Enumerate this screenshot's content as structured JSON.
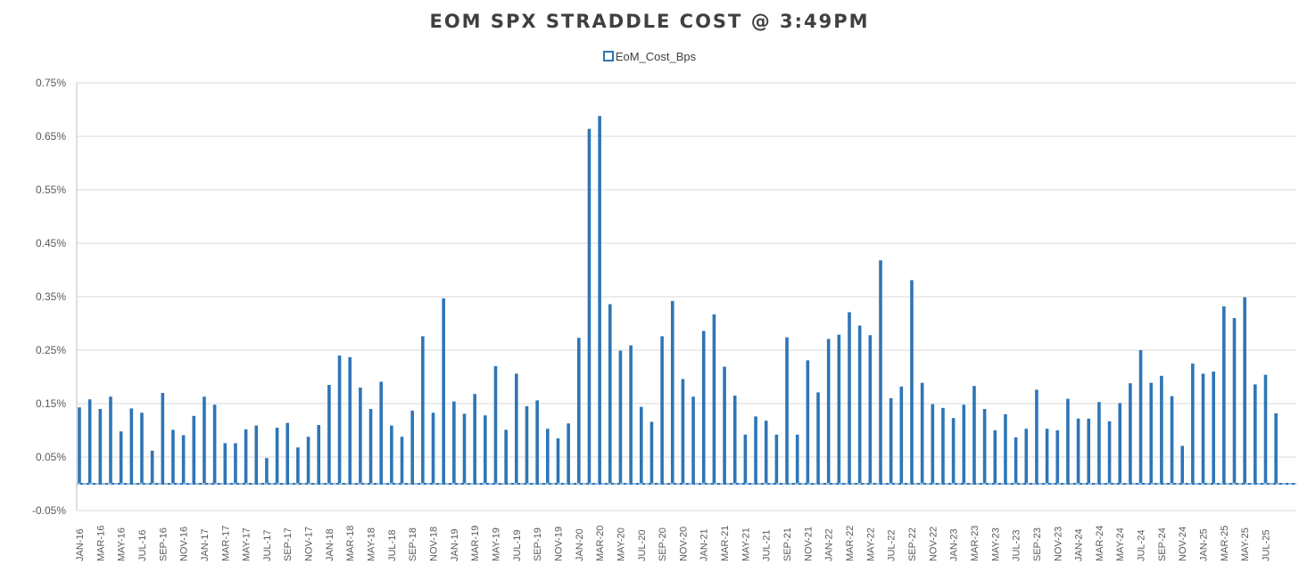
{
  "chart_data": {
    "type": "bar",
    "title": "EOM SPX STRADDLE COST @ 3:49PM",
    "legend": [
      {
        "name": "EoM_Cost_Bps",
        "color": "#2e75b6"
      }
    ],
    "legend_position": "top-center",
    "xlabel": "",
    "ylabel": "",
    "ylim": [
      -0.05,
      0.75
    ],
    "grid": true,
    "bar_color": "#2e75b6",
    "y_ticks": [
      "-0.05%",
      "0.05%",
      "0.15%",
      "0.25%",
      "0.35%",
      "0.45%",
      "0.55%",
      "0.65%",
      "0.75%"
    ],
    "y_tick_values": [
      -0.05,
      0.05,
      0.15,
      0.25,
      0.35,
      0.45,
      0.55,
      0.65,
      0.75
    ],
    "x_tick_labels": [
      "JAN-16",
      "MAR-16",
      "MAY-16",
      "JUL-16",
      "SEP-16",
      "NOV-16",
      "JAN-17",
      "MAR-17",
      "MAY-17",
      "JUL-17",
      "SEP-17",
      "NOV-17",
      "JAN-18",
      "MAR-18",
      "MAY-18",
      "JUL-18",
      "SEP-18",
      "NOV-18",
      "JAN-19",
      "MAR-19",
      "MAY-19",
      "JUL-19",
      "SEP-19",
      "NOV-19",
      "JAN-20",
      "MAR-20",
      "MAY-20",
      "JUL-20",
      "SEP-20",
      "NOV-20",
      "JAN-21",
      "MAR-21",
      "MAY-21",
      "JUL-21",
      "SEP-21",
      "NOV-21",
      "JAN-22",
      "MAR-22",
      "MAY-22",
      "JUL-22",
      "SEP-22",
      "NOV-22",
      "JAN-23",
      "MAR-23",
      "MAY-23",
      "JUL-23",
      "SEP-23",
      "NOV-23",
      "JAN-24",
      "MAR-24",
      "MAY-24",
      "JUL-24",
      "SEP-24",
      "NOV-24",
      "JAN-25",
      "MAR-25",
      "MAY-25",
      "JUL-25"
    ],
    "categories": [
      "JAN-16",
      "FEB-16",
      "MAR-16",
      "APR-16",
      "MAY-16",
      "JUN-16",
      "JUL-16",
      "AUG-16",
      "SEP-16",
      "OCT-16",
      "NOV-16",
      "DEC-16",
      "JAN-17",
      "FEB-17",
      "MAR-17",
      "APR-17",
      "MAY-17",
      "JUN-17",
      "JUL-17",
      "AUG-17",
      "SEP-17",
      "OCT-17",
      "NOV-17",
      "DEC-17",
      "JAN-18",
      "FEB-18",
      "MAR-18",
      "APR-18",
      "MAY-18",
      "JUN-18",
      "JUL-18",
      "AUG-18",
      "SEP-18",
      "OCT-18",
      "NOV-18",
      "DEC-18",
      "JAN-19",
      "FEB-19",
      "MAR-19",
      "APR-19",
      "MAY-19",
      "JUN-19",
      "JUL-19",
      "AUG-19",
      "SEP-19",
      "OCT-19",
      "NOV-19",
      "DEC-19",
      "JAN-20",
      "FEB-20",
      "MAR-20",
      "APR-20",
      "MAY-20",
      "JUN-20",
      "JUL-20",
      "AUG-20",
      "SEP-20",
      "OCT-20",
      "NOV-20",
      "DEC-20",
      "JAN-21",
      "FEB-21",
      "MAR-21",
      "APR-21",
      "MAY-21",
      "JUN-21",
      "JUL-21",
      "AUG-21",
      "SEP-21",
      "OCT-21",
      "NOV-21",
      "DEC-21",
      "JAN-22",
      "FEB-22",
      "MAR-22",
      "APR-22",
      "MAY-22",
      "JUN-22",
      "JUL-22",
      "AUG-22",
      "SEP-22",
      "OCT-22",
      "NOV-22",
      "DEC-22",
      "JAN-23",
      "FEB-23",
      "MAR-23",
      "APR-23",
      "MAY-23",
      "JUN-23",
      "JUL-23",
      "AUG-23",
      "SEP-23",
      "OCT-23",
      "NOV-23",
      "DEC-23",
      "JAN-24",
      "FEB-24",
      "MAR-24",
      "APR-24",
      "MAY-24",
      "JUN-24",
      "JUL-24",
      "AUG-24",
      "SEP-24",
      "OCT-24",
      "NOV-24",
      "DEC-24",
      "JAN-25",
      "FEB-25",
      "MAR-25",
      "APR-25",
      "MAY-25",
      "JUN-25",
      "JUL-25",
      "AUG-25"
    ],
    "series": [
      {
        "name": "EoM_Cost_Bps",
        "values": [
          0.143,
          0.158,
          0.14,
          0.163,
          0.098,
          0.141,
          0.133,
          0.062,
          0.17,
          0.101,
          0.091,
          0.127,
          0.163,
          0.148,
          0.076,
          0.076,
          0.102,
          0.109,
          0.048,
          0.105,
          0.114,
          0.068,
          0.088,
          0.11,
          0.185,
          0.24,
          0.237,
          0.18,
          0.14,
          0.191,
          0.109,
          0.088,
          0.137,
          0.276,
          0.133,
          0.347,
          0.154,
          0.131,
          0.168,
          0.128,
          0.22,
          0.101,
          0.206,
          0.145,
          0.156,
          0.103,
          0.085,
          0.113,
          0.273,
          0.664,
          0.688,
          0.336,
          0.249,
          0.259,
          0.144,
          0.116,
          0.276,
          0.342,
          0.196,
          0.163,
          0.286,
          0.317,
          0.219,
          0.165,
          0.092,
          0.126,
          0.118,
          0.092,
          0.274,
          0.092,
          0.231,
          0.171,
          0.271,
          0.279,
          0.321,
          0.296,
          0.278,
          0.418,
          0.16,
          0.182,
          0.381,
          0.189,
          0.149,
          0.142,
          0.123,
          0.148,
          0.183,
          0.14,
          0.1,
          0.13,
          0.087,
          0.103,
          0.176,
          0.103,
          0.1,
          0.159,
          0.122,
          0.122,
          0.153,
          0.117,
          0.151,
          0.188,
          0.25,
          0.189,
          0.202,
          0.164,
          0.071,
          0.225,
          0.206,
          0.21,
          0.332,
          0.31,
          0.349,
          0.186,
          0.204,
          0.132
        ]
      }
    ]
  }
}
